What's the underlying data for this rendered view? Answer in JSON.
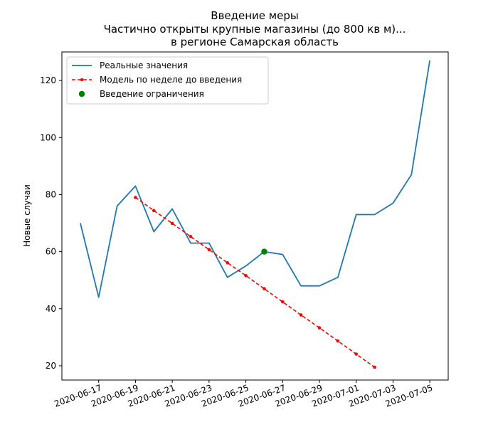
{
  "chart_data": {
    "type": "line",
    "title": [
      "Введение меры",
      "Частично открыты крупные магазины (до 800 кв м)...",
      "в регионе Самарская область"
    ],
    "xlabel": "",
    "ylabel": "Новые случаи",
    "x_ticks": [
      "2020-06-17",
      "2020-06-19",
      "2020-06-21",
      "2020-06-23",
      "2020-06-25",
      "2020-06-27",
      "2020-06-29",
      "2020-07-01",
      "2020-07-03",
      "2020-07-05"
    ],
    "y_ticks": [
      20,
      40,
      60,
      80,
      100,
      120
    ],
    "xlim": [
      "2020-06-15",
      "2020-07-06"
    ],
    "ylim": [
      15,
      130
    ],
    "legend_position": "top-left",
    "grid": false,
    "series": [
      {
        "name": "Реальные значения",
        "style": "solid",
        "color": "#1f77b4",
        "points": [
          [
            "2020-06-16",
            70
          ],
          [
            "2020-06-17",
            44
          ],
          [
            "2020-06-18",
            76
          ],
          [
            "2020-06-19",
            83
          ],
          [
            "2020-06-20",
            67
          ],
          [
            "2020-06-21",
            75
          ],
          [
            "2020-06-22",
            63
          ],
          [
            "2020-06-23",
            63
          ],
          [
            "2020-06-24",
            51
          ],
          [
            "2020-06-25",
            55
          ],
          [
            "2020-06-26",
            60
          ],
          [
            "2020-06-27",
            59
          ],
          [
            "2020-06-28",
            48
          ],
          [
            "2020-06-29",
            48
          ],
          [
            "2020-06-30",
            51
          ],
          [
            "2020-07-01",
            73
          ],
          [
            "2020-07-02",
            73
          ],
          [
            "2020-07-03",
            77
          ],
          [
            "2020-07-04",
            87
          ],
          [
            "2020-07-05",
            127
          ]
        ]
      },
      {
        "name": "Модель по неделе до введения",
        "style": "dashed-dots",
        "color": "#ff0000",
        "points": [
          [
            "2020-06-19",
            79
          ],
          [
            "2020-06-20",
            74.4
          ],
          [
            "2020-06-21",
            69.9
          ],
          [
            "2020-06-22",
            65.3
          ],
          [
            "2020-06-23",
            60.7
          ],
          [
            "2020-06-24",
            56.1
          ],
          [
            "2020-06-25",
            51.6
          ],
          [
            "2020-06-26",
            47.0
          ],
          [
            "2020-06-27",
            42.4
          ],
          [
            "2020-06-28",
            37.8
          ],
          [
            "2020-06-29",
            33.3
          ],
          [
            "2020-06-30",
            28.7
          ],
          [
            "2020-07-01",
            24.1
          ],
          [
            "2020-07-02",
            19.5
          ]
        ]
      }
    ],
    "marker": {
      "name": "Введение ограничения",
      "color": "#008000",
      "point": [
        "2020-06-26",
        60
      ]
    }
  }
}
